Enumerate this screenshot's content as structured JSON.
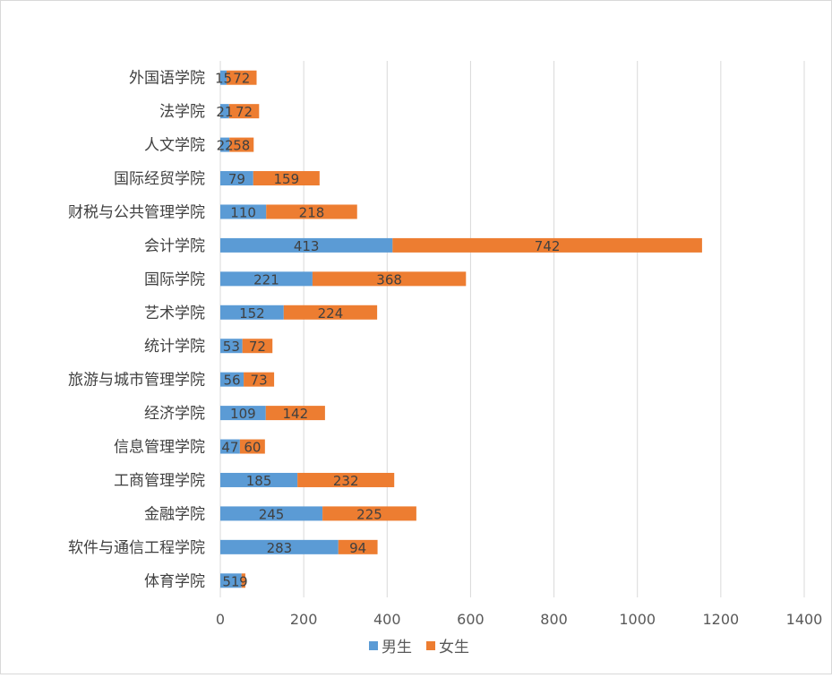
{
  "chart_data": {
    "type": "bar",
    "orientation": "horizontal",
    "stacked": true,
    "categories": [
      "外国语学院",
      "法学院",
      "人文学院",
      "国际经贸学院",
      "财税与公共管理学院",
      "会计学院",
      "国际学院",
      "艺术学院",
      "统计学院",
      "旅游与城市管理学院",
      "经济学院",
      "信息管理学院",
      "工商管理学院",
      "金融学院",
      "软件与通信工程学院",
      "体育学院"
    ],
    "series": [
      {
        "name": "男生",
        "color": "#5b9bd5",
        "values": [
          15,
          21,
          22,
          79,
          110,
          413,
          221,
          152,
          53,
          56,
          109,
          47,
          185,
          245,
          283,
          51
        ],
        "labels": [
          "15",
          "21",
          "22",
          "79",
          "110",
          "413",
          "221",
          "152",
          "53",
          "56",
          "109",
          "47",
          "185",
          "245",
          "283",
          "51"
        ]
      },
      {
        "name": "女生",
        "color": "#ed7d31",
        "values": [
          72,
          72,
          58,
          159,
          218,
          742,
          368,
          224,
          72,
          73,
          142,
          60,
          232,
          225,
          94,
          9
        ],
        "labels": [
          "72",
          "72",
          "58",
          "159",
          "218",
          "742",
          "368",
          "224",
          "72",
          "73",
          "142",
          "60",
          "232",
          "225",
          "94",
          "9"
        ]
      }
    ],
    "xlim": [
      0,
      1400
    ],
    "xticks": [
      "0",
      "200",
      "400",
      "600",
      "800",
      "1000",
      "1200",
      "1400"
    ],
    "grid": "vertical",
    "legend": "bottom"
  }
}
